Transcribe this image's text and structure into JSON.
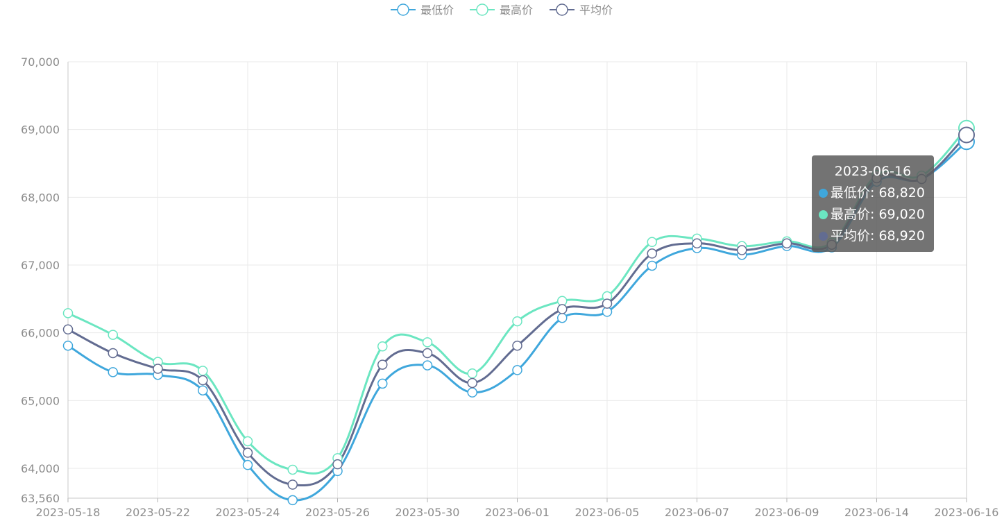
{
  "chart_data": {
    "type": "line",
    "smooth": true,
    "x": [
      "2023-05-18",
      "2023-05-20",
      "2023-05-22",
      "2023-05-23",
      "2023-05-24",
      "2023-05-25",
      "2023-05-26",
      "2023-05-29",
      "2023-05-30",
      "2023-05-31",
      "2023-06-01",
      "2023-06-02",
      "2023-06-05",
      "2023-06-06",
      "2023-06-07",
      "2023-06-08",
      "2023-06-09",
      "2023-06-12",
      "2023-06-14",
      "2023-06-15",
      "2023-06-16"
    ],
    "x_tick_labels": [
      "2023-05-18",
      "2023-05-22",
      "2023-05-24",
      "2023-05-26",
      "2023-05-30",
      "2023-06-01",
      "2023-06-05",
      "2023-06-07",
      "2023-06-09",
      "2023-06-14",
      "2023-06-16"
    ],
    "y_tick_labels": [
      "70,000",
      "69,000",
      "68,000",
      "67,000",
      "66,000",
      "65,000",
      "64,000",
      "63,560"
    ],
    "y_ticks": [
      70000,
      69000,
      68000,
      67000,
      66000,
      65000,
      64000,
      63560
    ],
    "ylim": [
      63560,
      70000
    ],
    "grid": true,
    "legend_position": "top-center",
    "series": [
      {
        "name": "最低价",
        "color": "#3fa7dc",
        "values": [
          65810,
          65420,
          65380,
          65150,
          64050,
          63530,
          63960,
          65250,
          65520,
          65120,
          65450,
          66220,
          66310,
          66990,
          67250,
          67150,
          67280,
          67260,
          68230,
          68270,
          68820
        ]
      },
      {
        "name": "最高价",
        "color": "#6be6c1",
        "values": [
          66290,
          65970,
          65570,
          65440,
          64400,
          63980,
          64150,
          65800,
          65860,
          65400,
          66170,
          66470,
          66540,
          67340,
          67390,
          67280,
          67350,
          67330,
          68330,
          68320,
          69020
        ]
      },
      {
        "name": "平均价",
        "color": "#626c91",
        "values": [
          66050,
          65700,
          65470,
          65300,
          64230,
          63760,
          64060,
          65530,
          65700,
          65260,
          65810,
          66350,
          66430,
          67170,
          67320,
          67220,
          67320,
          67300,
          68280,
          68270,
          68920
        ]
      }
    ],
    "tooltip": {
      "title": "2023-06-16",
      "rows": [
        {
          "label": "最低价: 68,820",
          "color": "#3fa7dc"
        },
        {
          "label": "最高价: 69,020",
          "color": "#6be6c1"
        },
        {
          "label": "平均价: 68,920",
          "color": "#626c91"
        }
      ]
    }
  }
}
